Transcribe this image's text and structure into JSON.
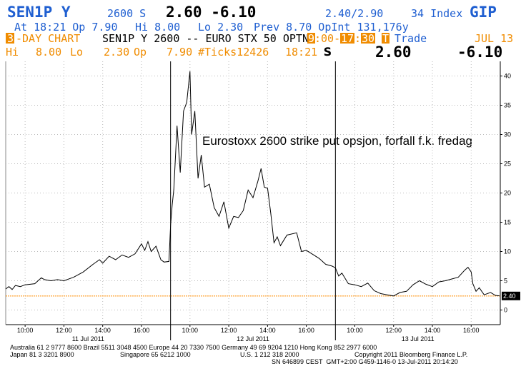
{
  "header": {
    "line1": [
      "SEN1P Y",
      "2600 S",
      "2.60 -6.10",
      "2.40/2.90",
      "34 Index",
      "GIP"
    ],
    "line2": [
      "At 18:21 Op 7.90",
      "Hi 8.00",
      "Lo 2.30",
      "Prev 8.70 OpInt 131,176y"
    ],
    "line3": [
      "3",
      "-DAY CHART",
      "SEN1P Y 2600 -- EURO STX 50 OPTN",
      "9",
      ":00-",
      "17",
      ":",
      "30",
      "T",
      "Trade",
      "JUL 13"
    ],
    "line4": [
      "Hi",
      "8.00",
      "Lo",
      "2.30",
      "Op",
      "7.90",
      "#Ticks12426",
      "18:21",
      "s",
      "2.60",
      "-6.10"
    ]
  },
  "chart_data": {
    "type": "line",
    "color": "#000000",
    "annotation": "Eurostoxx 2600 strike put opsjon, forfall f.k. fredag",
    "dates": [
      "11 Jul 2011",
      "12 Jul 2011",
      "13 Jul 2011"
    ],
    "x": [
      "11 Jul 2011 09:00",
      "11 Jul 2011 09:10",
      "11 Jul 2011 09:20",
      "11 Jul 2011 09:30",
      "11 Jul 2011 09:45",
      "11 Jul 2011 10:00",
      "11 Jul 2011 10:30",
      "11 Jul 2011 10:50",
      "11 Jul 2011 11:00",
      "11 Jul 2011 11:20",
      "11 Jul 2011 11:40",
      "11 Jul 2011 12:00",
      "11 Jul 2011 12:30",
      "11 Jul 2011 13:00",
      "11 Jul 2011 13:30",
      "11 Jul 2011 13:50",
      "11 Jul 2011 14:00",
      "11 Jul 2011 14:20",
      "11 Jul 2011 14:40",
      "11 Jul 2011 15:00",
      "11 Jul 2011 15:20",
      "11 Jul 2011 15:40",
      "11 Jul 2011 16:00",
      "11 Jul 2011 16:10",
      "11 Jul 2011 16:20",
      "11 Jul 2011 16:30",
      "11 Jul 2011 16:45",
      "11 Jul 2011 17:00",
      "11 Jul 2011 17:10",
      "11 Jul 2011 17:25",
      "12 Jul 2011 09:00",
      "12 Jul 2011 09:05",
      "12 Jul 2011 09:10",
      "12 Jul 2011 09:20",
      "12 Jul 2011 09:30",
      "12 Jul 2011 09:40",
      "12 Jul 2011 09:50",
      "12 Jul 2011 10:00",
      "12 Jul 2011 10:05",
      "12 Jul 2011 10:15",
      "12 Jul 2011 10:25",
      "12 Jul 2011 10:35",
      "12 Jul 2011 10:45",
      "12 Jul 2011 11:00",
      "12 Jul 2011 11:15",
      "12 Jul 2011 11:30",
      "12 Jul 2011 11:45",
      "12 Jul 2011 12:00",
      "12 Jul 2011 12:15",
      "12 Jul 2011 12:30",
      "12 Jul 2011 12:45",
      "12 Jul 2011 13:00",
      "12 Jul 2011 13:15",
      "12 Jul 2011 13:30",
      "12 Jul 2011 13:40",
      "12 Jul 2011 13:50",
      "12 Jul 2011 14:00",
      "12 Jul 2011 14:10",
      "12 Jul 2011 14:20",
      "12 Jul 2011 14:30",
      "12 Jul 2011 14:40",
      "12 Jul 2011 15:00",
      "12 Jul 2011 15:30",
      "12 Jul 2011 15:45",
      "12 Jul 2011 16:00",
      "12 Jul 2011 16:20",
      "12 Jul 2011 16:40",
      "12 Jul 2011 17:00",
      "12 Jul 2011 17:20",
      "13 Jul 2011 09:00",
      "13 Jul 2011 09:10",
      "13 Jul 2011 09:20",
      "13 Jul 2011 09:40",
      "13 Jul 2011 10:00",
      "13 Jul 2011 10:20",
      "13 Jul 2011 10:40",
      "13 Jul 2011 11:00",
      "13 Jul 2011 11:20",
      "13 Jul 2011 11:40",
      "13 Jul 2011 12:00",
      "13 Jul 2011 12:20",
      "13 Jul 2011 12:40",
      "13 Jul 2011 13:00",
      "13 Jul 2011 13:20",
      "13 Jul 2011 13:40",
      "13 Jul 2011 14:00",
      "13 Jul 2011 14:20",
      "13 Jul 2011 14:40",
      "13 Jul 2011 15:00",
      "13 Jul 2011 15:20",
      "13 Jul 2011 15:40",
      "13 Jul 2011 15:50",
      "13 Jul 2011 16:00",
      "13 Jul 2011 16:05",
      "13 Jul 2011 16:15",
      "13 Jul 2011 16:25",
      "13 Jul 2011 16:40",
      "13 Jul 2011 17:00",
      "13 Jul 2011 17:15",
      "13 Jul 2011 17:28"
    ],
    "values": [
      3.6,
      4.0,
      3.5,
      4.2,
      4.0,
      4.3,
      4.5,
      5.5,
      5.2,
      5.0,
      5.2,
      5.0,
      5.6,
      6.5,
      7.8,
      8.6,
      8.0,
      9.2,
      8.6,
      9.4,
      9.0,
      9.6,
      11.3,
      10.2,
      11.7,
      10.0,
      10.9,
      8.6,
      8.2,
      8.3,
      14.5,
      17.9,
      20.6,
      31.5,
      23.5,
      34.0,
      35.5,
      40.8,
      30.0,
      34.0,
      22.5,
      26.5,
      21.0,
      21.5,
      17.5,
      16.0,
      18.5,
      14.0,
      16.0,
      15.8,
      17.0,
      20.5,
      19.2,
      22.0,
      24.2,
      21.0,
      20.8,
      16.5,
      11.5,
      12.5,
      11.0,
      12.8,
      13.2,
      10.0,
      10.2,
      9.5,
      8.8,
      7.8,
      7.5,
      7.2,
      5.8,
      6.3,
      4.5,
      4.3,
      4.0,
      4.6,
      3.3,
      2.8,
      2.6,
      2.4,
      3.0,
      3.2,
      4.3,
      5.0,
      4.4,
      4.0,
      4.8,
      5.0,
      5.3,
      5.6,
      6.8,
      7.3,
      6.5,
      4.5,
      3.2,
      3.8,
      2.6,
      3.0,
      2.5,
      2.4
    ],
    "ylim": [
      -2.5,
      42.5
    ],
    "yticks": [
      0,
      5,
      10,
      15,
      20,
      25,
      30,
      35,
      40
    ],
    "xticks": [
      {
        "value": "11 Jul 2011 10:00",
        "label": "10:00"
      },
      {
        "value": "11 Jul 2011 12:00",
        "label": "12:00"
      },
      {
        "value": "11 Jul 2011 14:00",
        "label": "14:00"
      },
      {
        "value": "11 Jul 2011 16:00",
        "label": "16:00"
      },
      {
        "value": "12 Jul 2011 10:00",
        "label": "10:00"
      },
      {
        "value": "12 Jul 2011 12:00",
        "label": "12:00"
      },
      {
        "value": "12 Jul 2011 14:00",
        "label": "14:00"
      },
      {
        "value": "12 Jul 2011 16:00",
        "label": "16:00"
      },
      {
        "value": "13 Jul 2011 10:00",
        "label": "10:00"
      },
      {
        "value": "13 Jul 2011 12:00",
        "label": "12:00"
      },
      {
        "value": "13 Jul 2011 14:00",
        "label": "14:00"
      },
      {
        "value": "13 Jul 2011 16:00",
        "label": "16:00"
      }
    ],
    "reference": {
      "value": 2.4,
      "label": "2.40",
      "color": "#ff8c00"
    },
    "grid": true
  },
  "footer": {
    "line1": "Australia 61 2 9777 8600 Brazil 5511 3048 4500 Europe 44 20 7330 7500 Germany 49 69 9204 1210 Hong Kong 852 2977 6000",
    "line2": [
      "Japan 81 3 3201 8900",
      "Singapore 65 6212 1000",
      "U.S. 1 212 318 2000",
      "Copyright 2011 Bloomberg Finance L.P."
    ],
    "line3": "SN 646899 CEST  GMT+2:00 G459-1146-0 13-Jul-2011 20:14:20"
  }
}
